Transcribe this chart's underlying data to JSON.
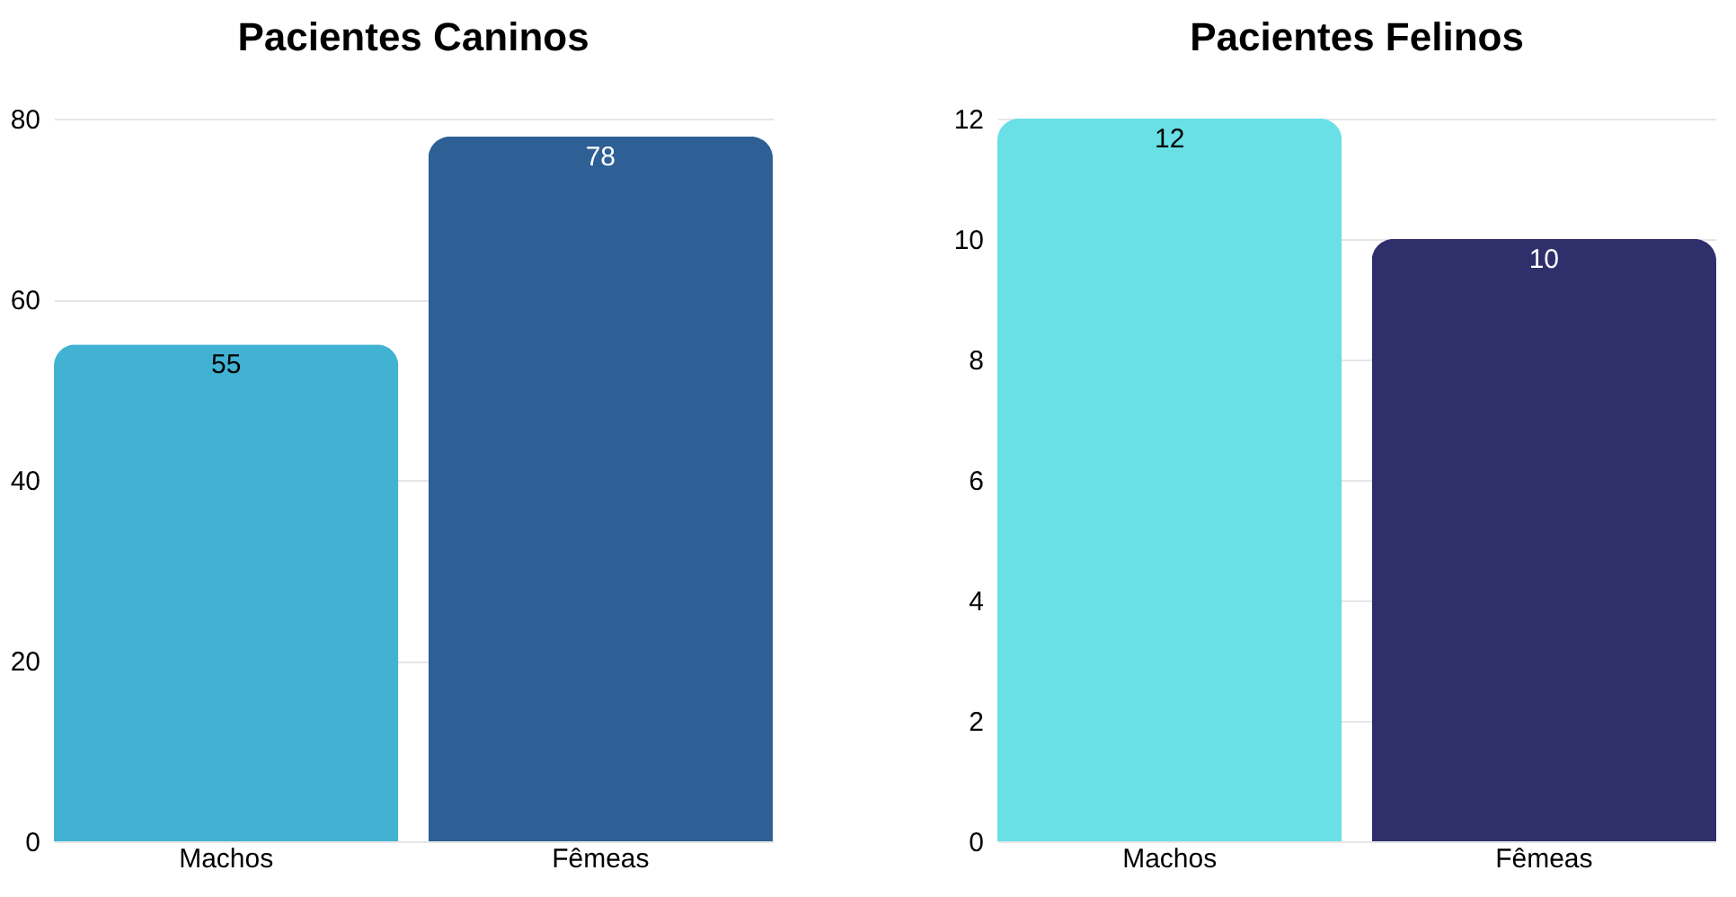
{
  "chart_data": [
    {
      "type": "bar",
      "title": "Pacientes Caninos",
      "categories": [
        "Machos",
        "Fêmeas"
      ],
      "values": [
        55,
        78
      ],
      "colors": [
        "#42b2d3",
        "#2e5f95"
      ],
      "ylim": [
        0,
        80
      ],
      "yticks": [
        0,
        20,
        40,
        60,
        80
      ],
      "grid": "y",
      "data_labels": true
    },
    {
      "type": "bar",
      "title": "Pacientes Felinos",
      "categories": [
        "Machos",
        "Fêmeas"
      ],
      "values": [
        12,
        10
      ],
      "colors": [
        "#69e0e6",
        "#2e2f6b"
      ],
      "ylim": [
        0,
        12
      ],
      "yticks": [
        0,
        2,
        4,
        6,
        8,
        10,
        12
      ],
      "grid": "y",
      "data_labels": true
    }
  ]
}
